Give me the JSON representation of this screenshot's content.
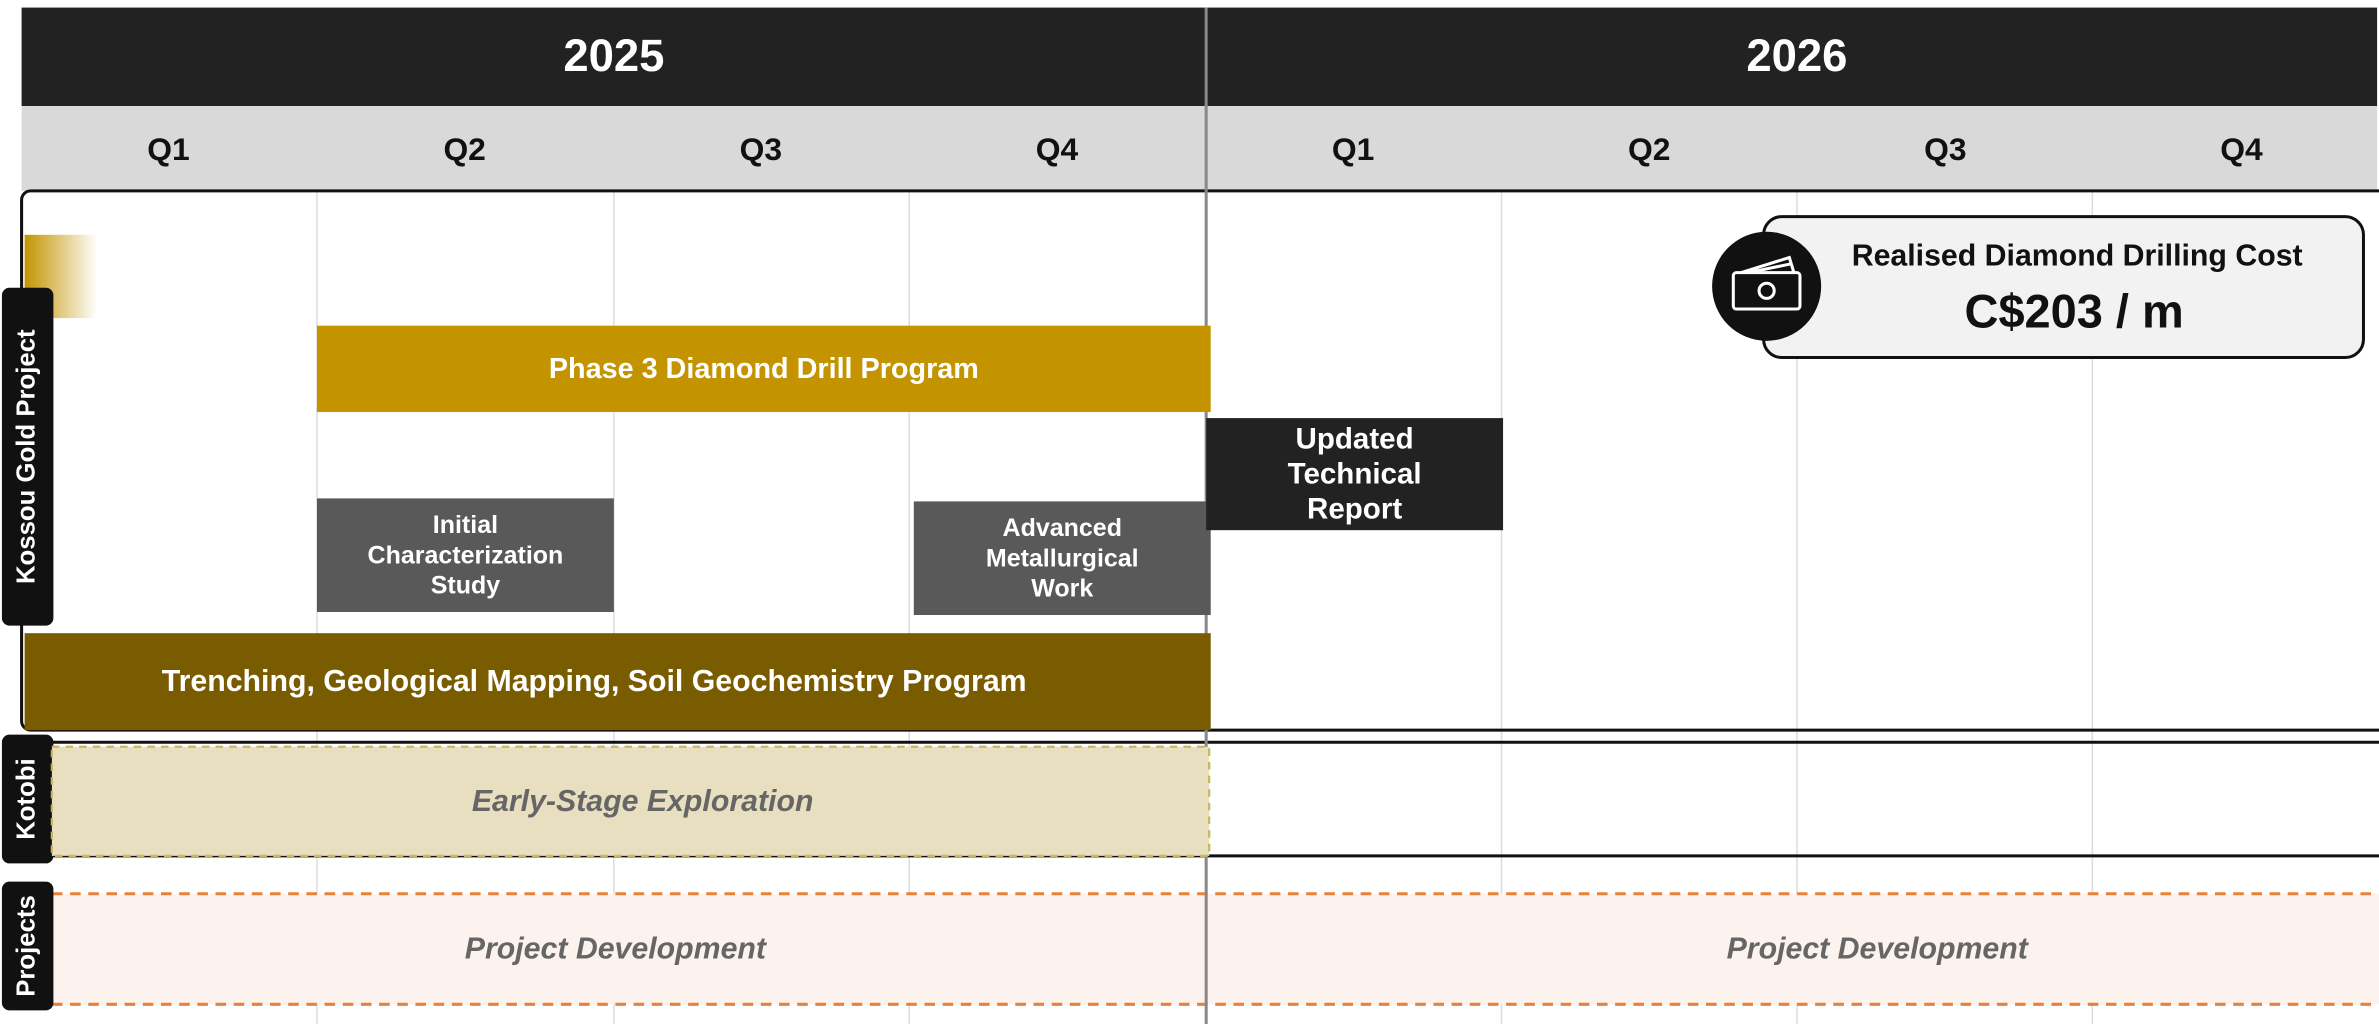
{
  "timeline": {
    "years": [
      "2025",
      "2026"
    ],
    "quarters": [
      "Q1",
      "Q2",
      "Q3",
      "Q4",
      "Q1",
      "Q2",
      "Q3",
      "Q4"
    ],
    "lanes": [
      "Kossou Gold Project",
      "Kotobi",
      "Projects"
    ],
    "tasks": [
      {
        "lines": [
          "Phase 3 Diamond Drill Program"
        ]
      },
      {
        "lines": [
          "Initial",
          "Characterization",
          "Study"
        ]
      },
      {
        "lines": [
          "Advanced",
          "Metallurgical",
          "Work"
        ]
      },
      {
        "lines": [
          "Updated",
          "Technical",
          "Report"
        ]
      },
      {
        "lines": [
          "Trenching, Geological Mapping, Soil Geochemistry Program"
        ]
      },
      {
        "lines": [
          "Early-Stage Exploration"
        ]
      },
      {
        "lines": [
          "Project Development"
        ]
      },
      {
        "lines": [
          "Project Development"
        ]
      }
    ],
    "callout": {
      "title": "Realised Diamond Drilling Cost",
      "value": "C$203 / m"
    }
  }
}
